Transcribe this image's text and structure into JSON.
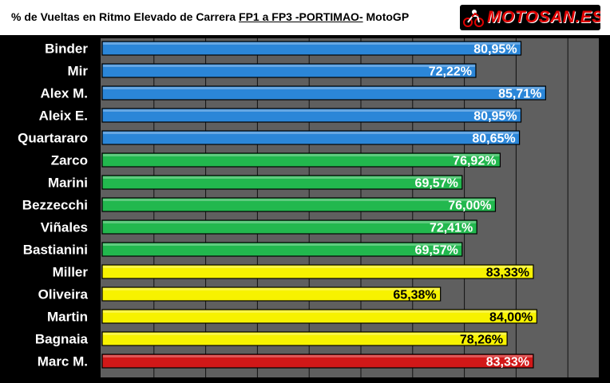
{
  "title": {
    "prefix": "% de Vueltas  en Ritmo Elevado de Carrera ",
    "underlined": "FP1 a FP3 -PORTIMAO-",
    "suffix": " MotoGP"
  },
  "logo": {
    "text": "MOTOSAN.ES",
    "icon": "motorbike-rider-icon",
    "color": "#e00000"
  },
  "chart_data": {
    "type": "bar",
    "orientation": "horizontal",
    "title": "% de Vueltas  en Ritmo Elevado de Carrera FP1 a FP3 -PORTIMAO- MotoGP",
    "xlabel": "",
    "ylabel": "",
    "xlim": [
      0,
      100
    ],
    "grid": true,
    "legend": "none",
    "categories": [
      "Binder",
      "Mir",
      "Alex M.",
      "Aleix E.",
      "Quartararo",
      "Zarco",
      "Marini",
      "Bezzecchi",
      "Viñales",
      "Bastianini",
      "Miller",
      "Oliveira",
      "Martin",
      "Bagnaia",
      "Marc M."
    ],
    "values": [
      80.95,
      72.22,
      85.71,
      80.95,
      80.65,
      76.92,
      69.57,
      76.0,
      72.41,
      69.57,
      83.33,
      65.38,
      84.0,
      78.26,
      83.33
    ],
    "value_labels": [
      "80,95%",
      "72,22%",
      "85,71%",
      "80,95%",
      "80,65%",
      "76,92%",
      "69,57%",
      "76,00%",
      "72,41%",
      "69,57%",
      "83,33%",
      "65,38%",
      "84,00%",
      "78,26%",
      "83,33%"
    ],
    "bar_colors": [
      "#2b86d8",
      "#2b86d8",
      "#2b86d8",
      "#2b86d8",
      "#2b86d8",
      "#22b84e",
      "#22b84e",
      "#22b84e",
      "#22b84e",
      "#22b84e",
      "#f7f200",
      "#f7f200",
      "#f7f200",
      "#f7f200",
      "#d11818"
    ],
    "colors": {
      "blue": "#2b86d8",
      "green": "#22b84e",
      "yellow": "#f7f200",
      "red": "#d11818",
      "plot_background": "#5f5f5f",
      "grid": "#111111"
    }
  }
}
